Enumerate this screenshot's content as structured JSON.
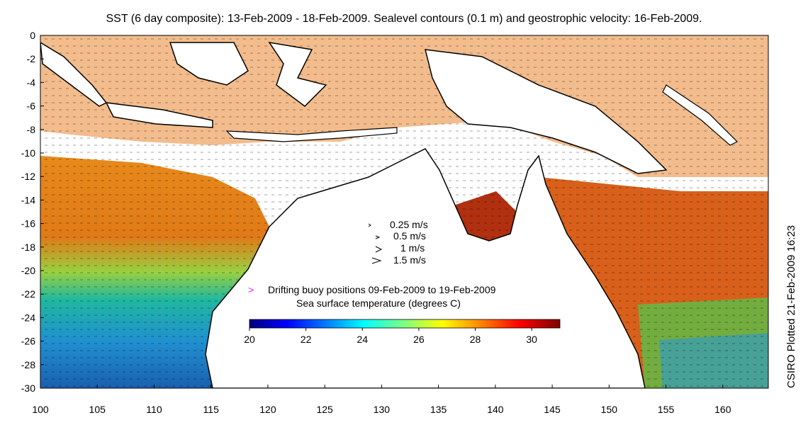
{
  "title": "SST (6 day composite): 13-Feb-2009 - 18-Feb-2009. Sealevel contours (0.1 m) and geostrophic velocity: 16-Feb-2009.",
  "credit": "CSIRO Plotted 21-Feb-2009 16:23",
  "x_axis": {
    "ticks": [
      "100",
      "105",
      "110",
      "115",
      "120",
      "125",
      "130",
      "135",
      "140",
      "145",
      "150",
      "155",
      "160"
    ]
  },
  "y_axis": {
    "ticks": [
      "0",
      "-2",
      "-4",
      "-6",
      "-8",
      "-10",
      "-12",
      "-14",
      "-16",
      "-18",
      "-20",
      "-22",
      "-24",
      "-26",
      "-28",
      "-30"
    ]
  },
  "velocity_legend": {
    "items": [
      "0.25 m/s",
      "0.5 m/s",
      "1 m/s",
      "1.5 m/s"
    ]
  },
  "buoy_legend": {
    "symbol": ">",
    "label": "Drifting buoy positions 09-Feb-2009 to 19-Feb-2009",
    "color": "#e020e0"
  },
  "colorbar": {
    "title": "Sea surface temperature (degrees C)",
    "ticks": [
      "20",
      "22",
      "24",
      "26",
      "28",
      "30"
    ],
    "colors": [
      "#00007f",
      "#0000ff",
      "#007fff",
      "#00ffff",
      "#7fff7f",
      "#ffff00",
      "#ff7f00",
      "#ff0000",
      "#7f0000"
    ]
  },
  "colors": {
    "land": "#ffffff",
    "coast": "#000000"
  }
}
